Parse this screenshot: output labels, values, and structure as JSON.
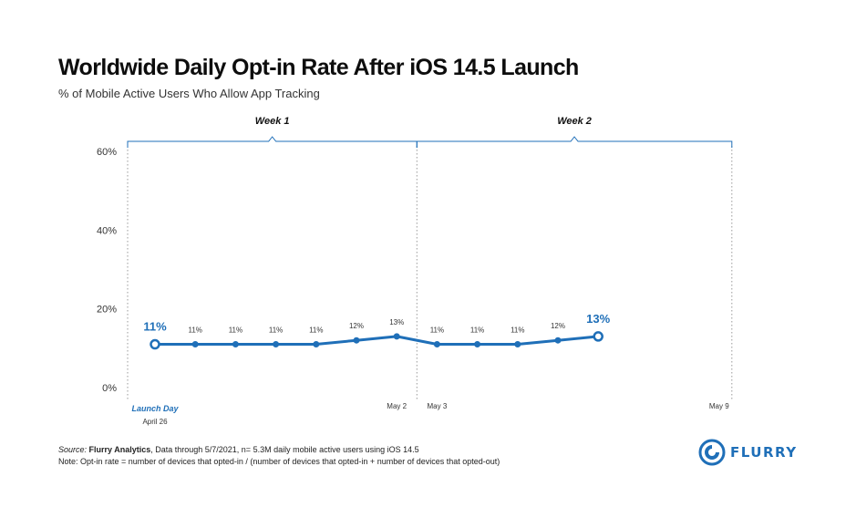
{
  "chart_data": {
    "type": "line",
    "title": "Worldwide Daily Opt-in Rate After iOS 14.5 Launch",
    "subtitle": "% of Mobile Active Users Who Allow App Tracking",
    "ylim": [
      0,
      60
    ],
    "yticks": [
      "0%",
      "20%",
      "40%",
      "60%"
    ],
    "ytick_values": [
      0,
      20,
      40,
      60
    ],
    "series": [
      {
        "values": [
          11,
          11,
          11,
          11,
          11,
          12,
          13,
          11,
          11,
          11,
          12,
          13
        ],
        "labels": [
          "11%",
          "11%",
          "11%",
          "11%",
          "11%",
          "12%",
          "13%",
          "11%",
          "11%",
          "11%",
          "12%",
          "13%"
        ],
        "highlight": [
          0,
          11
        ]
      }
    ],
    "day_slots": 15,
    "x_labels": [
      {
        "slot": 0,
        "text": "Launch Day",
        "sub": "April 26",
        "style": "emphasis"
      },
      {
        "slot": 6,
        "text": "May 2"
      },
      {
        "slot": 7,
        "text": "May 3"
      },
      {
        "slot": 14,
        "text": "May 9"
      }
    ],
    "weeks": [
      {
        "label": "Week 1",
        "start_slot": 0,
        "end_slot": 6
      },
      {
        "label": "Week 2",
        "start_slot": 7,
        "end_slot": 14
      }
    ],
    "colors": {
      "line": "#1f6fb8",
      "bracket": "#1f6fb8",
      "axis_text": "#333333",
      "divider": "#9a9a9a"
    },
    "grid": false
  },
  "footer": {
    "source_prefix": "Source: ",
    "source_name": "Flurry Analytics",
    "source_text": ", Data through 5/7/2021, n= 5.3M daily mobile active users using iOS 14.5",
    "note": "Note: Opt-in rate = number of devices that opted-in / (number of devices that opted-in + number of devices that opted-out)"
  },
  "logo": {
    "text": "FLURRY",
    "color": "#1f6fb8"
  }
}
